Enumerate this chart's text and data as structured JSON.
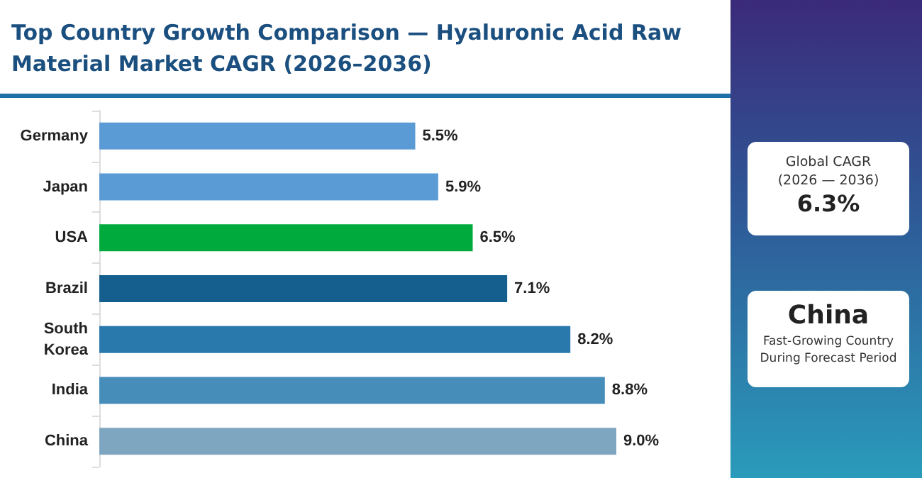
{
  "chart_data": {
    "type": "bar",
    "orientation": "horizontal",
    "title": "Top Country Growth Comparison — Hyaluronic Acid Raw Material Market CAGR (2026–2036)",
    "categories": [
      "Germany",
      "Japan",
      "USA",
      "Brazil",
      "South\nKorea",
      "India",
      "China"
    ],
    "values": [
      5.5,
      5.9,
      6.5,
      7.1,
      8.2,
      8.8,
      9.0
    ],
    "colors": [
      "#5b9bd5",
      "#5b9bd5",
      "#00aa3c",
      "#155f8f",
      "#2a79ad",
      "#478dba",
      "#7fa6c0"
    ],
    "value_labels": [
      "5.5%",
      "5.9%",
      "6.5%",
      "7.1%",
      "8.2%",
      "8.8%",
      "9.0%"
    ],
    "annotations": [
      "Global CAGR\n(2026 — 2036)",
      "6.3%",
      "China",
      "Fast-Growing Country\nDuring Forecast Period"
    ]
  }
}
